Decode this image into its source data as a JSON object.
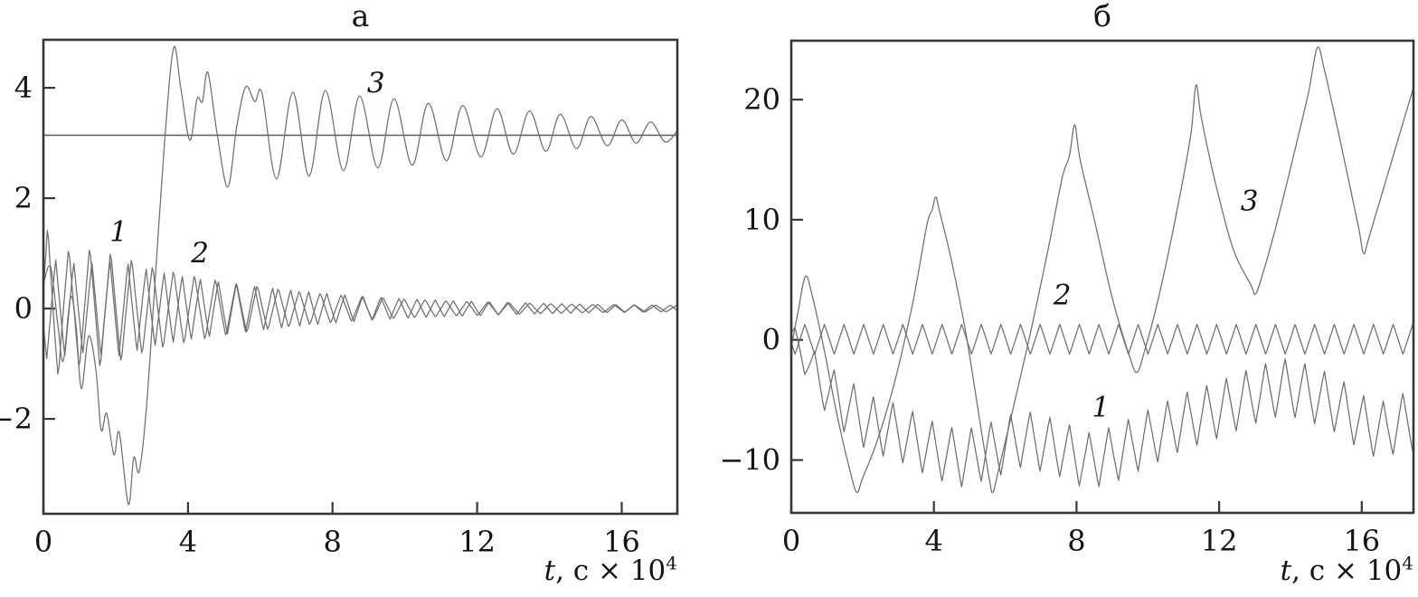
{
  "figure": {
    "background": "#ffffff",
    "colors": {
      "frame": "#383838",
      "curve": "#6f6f6f",
      "reference_line": "#5a5a5a",
      "text": "#141414"
    }
  },
  "chart_data": [
    {
      "type": "line",
      "title": "а",
      "xlabel_text": "t, с × 10⁴",
      "xlabel_parts": {
        "variable": "t",
        "rest": ", с × 10",
        "exponent": "4"
      },
      "xlim": [
        0,
        17.54
      ],
      "ylim": [
        -3.72,
        4.87
      ],
      "xticks": [
        0,
        4,
        8,
        12,
        16
      ],
      "yticks": [
        -2,
        0,
        2,
        4
      ],
      "grid": false,
      "legend": "inline-numeric-labels",
      "reference_line_y": 3.14,
      "series": [
        {
          "name": "1",
          "kind": "oscillation",
          "label_pos": [
            2.08,
            1.22
          ],
          "period": 0.58,
          "phase": 0.12,
          "mean": [
            [
              0,
              0
            ],
            [
              17.54,
              0
            ]
          ],
          "amplitude": [
            [
              0,
              1.62
            ],
            [
              0.6,
              1.12
            ],
            [
              1.4,
              1.15
            ],
            [
              2.2,
              1.0
            ],
            [
              3,
              0.8
            ],
            [
              4,
              0.65
            ],
            [
              5,
              0.52
            ],
            [
              6,
              0.42
            ],
            [
              7,
              0.33
            ],
            [
              8,
              0.27
            ],
            [
              9,
              0.22
            ],
            [
              10,
              0.18
            ],
            [
              11.5,
              0.14
            ],
            [
              13,
              0.11
            ],
            [
              15,
              0.08
            ],
            [
              17.54,
              0.06
            ]
          ]
        },
        {
          "name": "2",
          "kind": "oscillation",
          "label_pos": [
            4.33,
            0.84
          ],
          "period": 0.5,
          "phase": 0.34,
          "mean": [
            [
              0,
              0
            ],
            [
              17.54,
              0
            ]
          ],
          "amplitude": [
            [
              0,
              0.95
            ],
            [
              1,
              0.82
            ],
            [
              2,
              0.9
            ],
            [
              3,
              0.7
            ],
            [
              4,
              0.58
            ],
            [
              5,
              0.48
            ],
            [
              6,
              0.4
            ],
            [
              7,
              0.33
            ],
            [
              8,
              0.27
            ],
            [
              9,
              0.22
            ],
            [
              10,
              0.18
            ],
            [
              11.5,
              0.14
            ],
            [
              13,
              0.11
            ],
            [
              15,
              0.08
            ],
            [
              17.54,
              0.06
            ]
          ]
        },
        {
          "name": "3",
          "kind": "keypoints",
          "smooth": true,
          "label_pos": [
            9.2,
            3.92
          ],
          "points": [
            [
              0,
              0.45
            ],
            [
              0.2,
              0.75
            ],
            [
              0.4,
              -0.3
            ],
            [
              0.55,
              -0.95
            ],
            [
              0.75,
              0.2
            ],
            [
              0.9,
              -0.3
            ],
            [
              1.05,
              -1.45
            ],
            [
              1.25,
              -0.5
            ],
            [
              1.45,
              -1.1
            ],
            [
              1.6,
              -2.2
            ],
            [
              1.75,
              -1.9
            ],
            [
              1.95,
              -2.65
            ],
            [
              2.1,
              -2.25
            ],
            [
              2.35,
              -3.55
            ],
            [
              2.5,
              -2.7
            ],
            [
              2.65,
              -2.95
            ],
            [
              2.85,
              -1.8
            ],
            [
              3.1,
              0.6
            ],
            [
              3.35,
              3.0
            ],
            [
              3.6,
              4.72
            ],
            [
              3.8,
              4.0
            ],
            [
              4.05,
              3.05
            ],
            [
              4.25,
              3.8
            ],
            [
              4.4,
              3.75
            ],
            [
              4.55,
              4.28
            ],
            [
              4.8,
              3.2
            ],
            [
              5.1,
              2.2
            ],
            [
              5.35,
              3.3
            ],
            [
              5.6,
              4.02
            ],
            [
              5.85,
              3.75
            ],
            [
              6.05,
              3.9
            ],
            [
              6.45,
              2.35
            ],
            [
              6.9,
              3.92
            ],
            [
              7.35,
              2.4
            ],
            [
              7.8,
              3.95
            ],
            [
              8.3,
              2.5
            ],
            [
              8.75,
              3.85
            ],
            [
              9.25,
              2.55
            ],
            [
              9.7,
              3.8
            ],
            [
              10.2,
              2.6
            ],
            [
              10.65,
              3.72
            ],
            [
              11.15,
              2.68
            ],
            [
              11.6,
              3.68
            ],
            [
              12.1,
              2.75
            ],
            [
              12.55,
              3.62
            ],
            [
              13.0,
              2.8
            ],
            [
              13.45,
              3.58
            ],
            [
              13.9,
              2.85
            ],
            [
              14.3,
              3.52
            ],
            [
              14.75,
              2.9
            ],
            [
              15.15,
              3.48
            ],
            [
              15.6,
              2.95
            ],
            [
              16.0,
              3.42
            ],
            [
              16.4,
              3.0
            ],
            [
              16.8,
              3.38
            ],
            [
              17.2,
              3.02
            ],
            [
              17.54,
              3.22
            ]
          ]
        }
      ]
    },
    {
      "type": "line",
      "title": "б",
      "xlabel_text": "t, с × 10⁴",
      "xlabel_parts": {
        "variable": "t",
        "rest": ", с × 10",
        "exponent": "4"
      },
      "xlim": [
        0,
        17.45
      ],
      "ylim": [
        -14.4,
        24.9
      ],
      "xticks": [
        0,
        4,
        8,
        12,
        16
      ],
      "yticks": [
        -10,
        0,
        10,
        20
      ],
      "grid": false,
      "legend": "inline-numeric-labels",
      "reference_line_y": null,
      "series": [
        {
          "name": "1",
          "kind": "oscillation",
          "label_pos": [
            8.68,
            -6.4
          ],
          "period": 0.55,
          "phase": 0.1,
          "mean": [
            [
              0,
              0.3
            ],
            [
              0.4,
              -1.5
            ],
            [
              0.8,
              -3.5
            ],
            [
              1.4,
              -5.2
            ],
            [
              2.2,
              -7.0
            ],
            [
              3.0,
              -7.7
            ],
            [
              4.0,
              -9.2
            ],
            [
              4.8,
              -9.9
            ],
            [
              5.6,
              -9.2
            ],
            [
              6.5,
              -8.2
            ],
            [
              7.5,
              -9.0
            ],
            [
              8.3,
              -10.1
            ],
            [
              9.0,
              -9.6
            ],
            [
              10.0,
              -8.2
            ],
            [
              11.0,
              -6.8
            ],
            [
              12.0,
              -5.8
            ],
            [
              13.0,
              -4.6
            ],
            [
              13.8,
              -3.9
            ],
            [
              14.5,
              -4.4
            ],
            [
              15.3,
              -5.4
            ],
            [
              16.2,
              -7.3
            ],
            [
              16.7,
              -7.5
            ],
            [
              17.1,
              -6.8
            ],
            [
              17.45,
              -6.9
            ]
          ],
          "amplitude": [
            [
              0,
              1.1
            ],
            [
              0.8,
              2.0
            ],
            [
              1.6,
              2.4
            ],
            [
              17.45,
              2.4
            ]
          ]
        },
        {
          "name": "2",
          "kind": "oscillation",
          "label_pos": [
            7.6,
            2.95
          ],
          "period": 0.55,
          "phase": 0.38,
          "mean": [
            [
              0,
              0.05
            ],
            [
              17.45,
              0.05
            ]
          ],
          "amplitude": [
            [
              0,
              1.25
            ],
            [
              17.45,
              1.25
            ]
          ]
        },
        {
          "name": "3",
          "kind": "keypoints",
          "smooth": true,
          "label_pos": [
            12.85,
            10.8
          ],
          "points": [
            [
              0,
              -0.6
            ],
            [
              0.2,
              2.5
            ],
            [
              0.4,
              5.3
            ],
            [
              0.6,
              3.5
            ],
            [
              0.9,
              -0.5
            ],
            [
              1.3,
              -6.5
            ],
            [
              1.7,
              -11.5
            ],
            [
              1.85,
              -12.7
            ],
            [
              2.0,
              -11.5
            ],
            [
              2.4,
              -8.5
            ],
            [
              2.9,
              -3.5
            ],
            [
              3.4,
              3.0
            ],
            [
              3.8,
              9.5
            ],
            [
              3.95,
              10.8
            ],
            [
              4.05,
              11.9
            ],
            [
              4.15,
              10.8
            ],
            [
              4.5,
              6.5
            ],
            [
              4.9,
              0.5
            ],
            [
              5.3,
              -7.0
            ],
            [
              5.55,
              -11.5
            ],
            [
              5.65,
              -12.7
            ],
            [
              5.8,
              -11.0
            ],
            [
              6.2,
              -6.0
            ],
            [
              6.7,
              0.5
            ],
            [
              7.2,
              7.5
            ],
            [
              7.6,
              13.5
            ],
            [
              7.8,
              15.3
            ],
            [
              7.95,
              17.9
            ],
            [
              8.1,
              15.0
            ],
            [
              8.5,
              10.0
            ],
            [
              9.0,
              3.5
            ],
            [
              9.5,
              -1.5
            ],
            [
              9.7,
              -2.7
            ],
            [
              9.9,
              -1.0
            ],
            [
              10.3,
              3.5
            ],
            [
              10.8,
              10.5
            ],
            [
              11.2,
              17.0
            ],
            [
              11.35,
              21.2
            ],
            [
              11.5,
              18.5
            ],
            [
              11.9,
              13.0
            ],
            [
              12.4,
              7.5
            ],
            [
              12.9,
              4.5
            ],
            [
              13.0,
              3.8
            ],
            [
              13.15,
              4.8
            ],
            [
              13.6,
              9.5
            ],
            [
              14.1,
              15.5
            ],
            [
              14.5,
              20.5
            ],
            [
              14.75,
              24.3
            ],
            [
              14.95,
              22.5
            ],
            [
              15.4,
              16.5
            ],
            [
              15.9,
              9.5
            ],
            [
              16.05,
              7.2
            ],
            [
              16.2,
              8.5
            ],
            [
              16.7,
              13.5
            ],
            [
              17.1,
              17.5
            ],
            [
              17.45,
              21.0
            ]
          ]
        }
      ]
    }
  ]
}
